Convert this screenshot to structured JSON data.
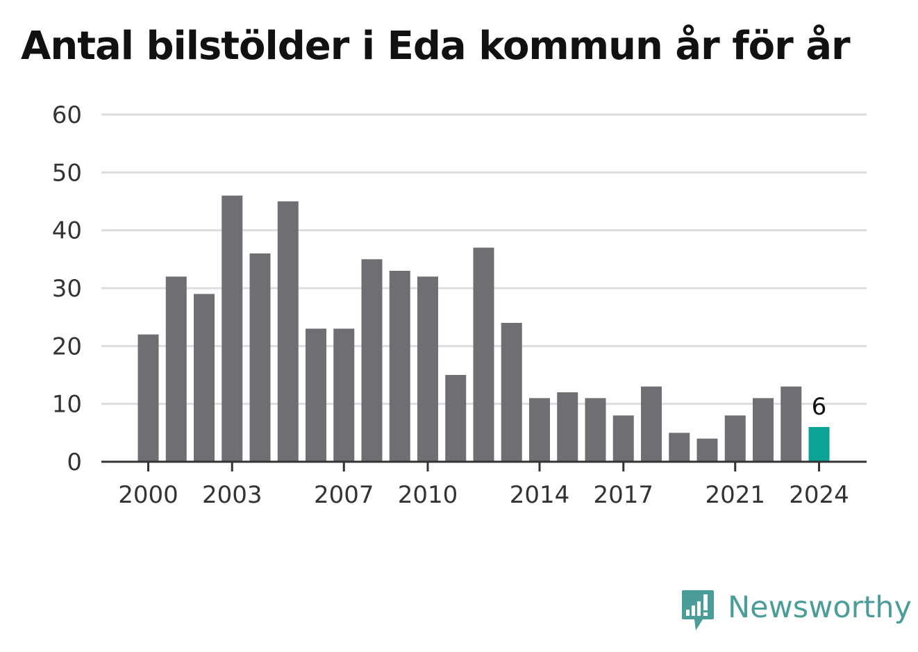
{
  "chart_data": {
    "type": "bar",
    "title": "Antal bilstölder i Eda kommun år för år",
    "categories": [
      "2000",
      "2001",
      "2002",
      "2003",
      "2004",
      "2005",
      "2006",
      "2007",
      "2008",
      "2009",
      "2010",
      "2011",
      "2012",
      "2013",
      "2014",
      "2015",
      "2016",
      "2017",
      "2018",
      "2019",
      "2020",
      "2021",
      "2022",
      "2023",
      "2024"
    ],
    "values": [
      22,
      32,
      29,
      46,
      36,
      45,
      23,
      23,
      35,
      33,
      32,
      15,
      37,
      24,
      11,
      12,
      11,
      8,
      13,
      5,
      4,
      8,
      11,
      13,
      6
    ],
    "xticks": [
      "2000",
      "2003",
      "2007",
      "2010",
      "2014",
      "2017",
      "2021",
      "2024"
    ],
    "yticks": [
      0,
      10,
      20,
      30,
      40,
      50,
      60
    ],
    "ylim": [
      0,
      60
    ],
    "grid": true,
    "highlight": {
      "index": 24,
      "label": "6"
    },
    "colors": {
      "bar": "#6f6e73",
      "highlight": "#0aa396",
      "grid": "#dddddd",
      "axis": "#333333"
    }
  },
  "brand": {
    "name": "Newsworthy",
    "color": "#4a9d98",
    "icon": "newsworthy-bar-chart-icon"
  }
}
